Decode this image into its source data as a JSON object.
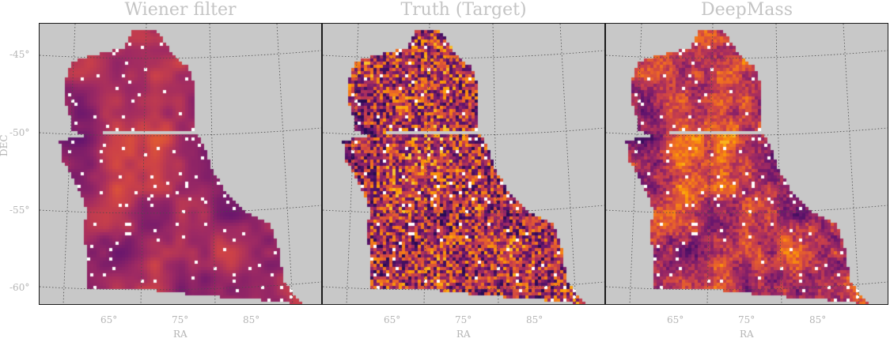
{
  "panels": [
    {
      "title": "Wiener filter",
      "style": "smooth"
    },
    {
      "title": "Truth (Target)",
      "style": "noisy"
    },
    {
      "title": "DeepMass",
      "style": "mixed"
    }
  ],
  "y_axis": {
    "label": "DEC",
    "ticks": [
      "-45°",
      "-50°",
      "-55°",
      "-60°"
    ]
  },
  "x_axis": {
    "label": "RA",
    "ticks": [
      "65°",
      "75°",
      "85°"
    ]
  },
  "colors": {
    "background": "#c8c8c8",
    "colormap": "inferno",
    "grid": "#4a4a4a"
  }
}
